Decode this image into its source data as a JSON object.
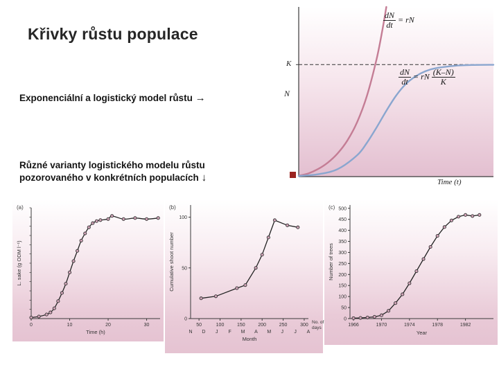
{
  "slide": {
    "title": "Křivky růstu populace",
    "caption_top": "Exponenciální a logistický model růstu",
    "caption_top_arrow": "→",
    "caption_bottom_line1": "Různé varianty logistického modelu růstu",
    "caption_bottom_line2": "pozorovaného v konkrétních populacích",
    "caption_bottom_arrow": "↓"
  },
  "colors": {
    "exponential_curve": "#c47d95",
    "logistic_curve": "#8aa6cf",
    "axis": "#3a3a3a",
    "data_line": "#222222",
    "marker_fill": "#d2a4b8",
    "marker_stroke": "#333333",
    "red_square": "#9b2420"
  },
  "chart_data": [
    {
      "id": "model",
      "type": "line",
      "title": "",
      "xlabel": "Time (t)",
      "ylabel": "N",
      "k_label": "K",
      "k_value": 0.66,
      "xlim": [
        0,
        1
      ],
      "ylim": [
        0,
        1
      ],
      "grid": false,
      "legend_position": "none",
      "formulas": {
        "exponential": {
          "num": "dN",
          "den": "dt",
          "rhs": "= rN"
        },
        "logistic": {
          "num": "dN",
          "den": "dt",
          "rhs": "= rN",
          "num2": "(K–N)",
          "den2": "K"
        }
      },
      "series": [
        {
          "name": "exponential",
          "x": [
            0,
            0.05,
            0.1,
            0.15,
            0.2,
            0.25,
            0.3,
            0.35,
            0.4,
            0.43,
            0.45
          ],
          "y": [
            0.005,
            0.019,
            0.045,
            0.083,
            0.137,
            0.213,
            0.321,
            0.475,
            0.693,
            0.866,
            1.0
          ]
        },
        {
          "name": "logistic",
          "x": [
            0,
            0.1,
            0.2,
            0.3,
            0.35,
            0.4,
            0.45,
            0.5,
            0.55,
            0.6,
            0.65,
            0.7,
            0.8,
            0.9,
            1.0
          ],
          "y": [
            0.004,
            0.014,
            0.044,
            0.126,
            0.199,
            0.29,
            0.388,
            0.477,
            0.546,
            0.591,
            0.621,
            0.638,
            0.653,
            0.658,
            0.659
          ]
        }
      ]
    },
    {
      "id": "a",
      "panel_label": "(a)",
      "type": "scatter",
      "xlabel": "Time (h)",
      "ylabel": "L. sake (g ODM l⁻¹)",
      "xlim": [
        0,
        33.5
      ],
      "ylim": [
        0,
        1.08
      ],
      "xticks": [
        0,
        10,
        20,
        30
      ],
      "yticks": [],
      "x": [
        0,
        2,
        4,
        5,
        6,
        7,
        8,
        9,
        10,
        11,
        12,
        13,
        14,
        15,
        16,
        17,
        18,
        20,
        21,
        24,
        27,
        30,
        33
      ],
      "y": [
        0.01,
        0.02,
        0.04,
        0.06,
        0.1,
        0.17,
        0.25,
        0.34,
        0.45,
        0.56,
        0.66,
        0.76,
        0.83,
        0.89,
        0.93,
        0.95,
        0.96,
        0.97,
        1.0,
        0.97,
        0.98,
        0.97,
        0.98
      ]
    },
    {
      "id": "b",
      "panel_label": "(b)",
      "type": "scatter",
      "xlabel": "Month",
      "x2label_lines": [
        "No. of",
        "days"
      ],
      "ylabel": "Cumulative shoot number",
      "xlim": [
        30,
        310
      ],
      "ylim": [
        0,
        112
      ],
      "xticks_days": [
        50,
        100,
        150,
        200,
        250,
        300
      ],
      "month_labels": [
        "N",
        "D",
        "J",
        "F",
        "M",
        "A",
        "M",
        "J",
        "J",
        "A"
      ],
      "yticks": [
        0,
        50,
        100
      ],
      "x": [
        55,
        90,
        140,
        160,
        185,
        200,
        215,
        230,
        260,
        285
      ],
      "y": [
        20,
        22,
        30,
        33,
        50,
        63,
        80,
        97,
        92,
        90
      ]
    },
    {
      "id": "c",
      "panel_label": "(c)",
      "type": "scatter",
      "xlabel": "Year",
      "ylabel": "Number of trees",
      "xlim": [
        1965.5,
        1986
      ],
      "ylim": [
        0,
        515
      ],
      "xticks": [
        1966,
        1970,
        1974,
        1978,
        1982
      ],
      "yticks": [
        0,
        50,
        100,
        150,
        200,
        250,
        300,
        350,
        400,
        450,
        500
      ],
      "x": [
        1966,
        1967,
        1968,
        1969,
        1970,
        1971,
        1972,
        1973,
        1974,
        1975,
        1976,
        1977,
        1978,
        1979,
        1980,
        1981,
        1982,
        1983,
        1984
      ],
      "y": [
        2,
        3,
        5,
        8,
        15,
        35,
        70,
        110,
        160,
        215,
        270,
        325,
        375,
        415,
        445,
        462,
        470,
        465,
        470
      ]
    }
  ]
}
